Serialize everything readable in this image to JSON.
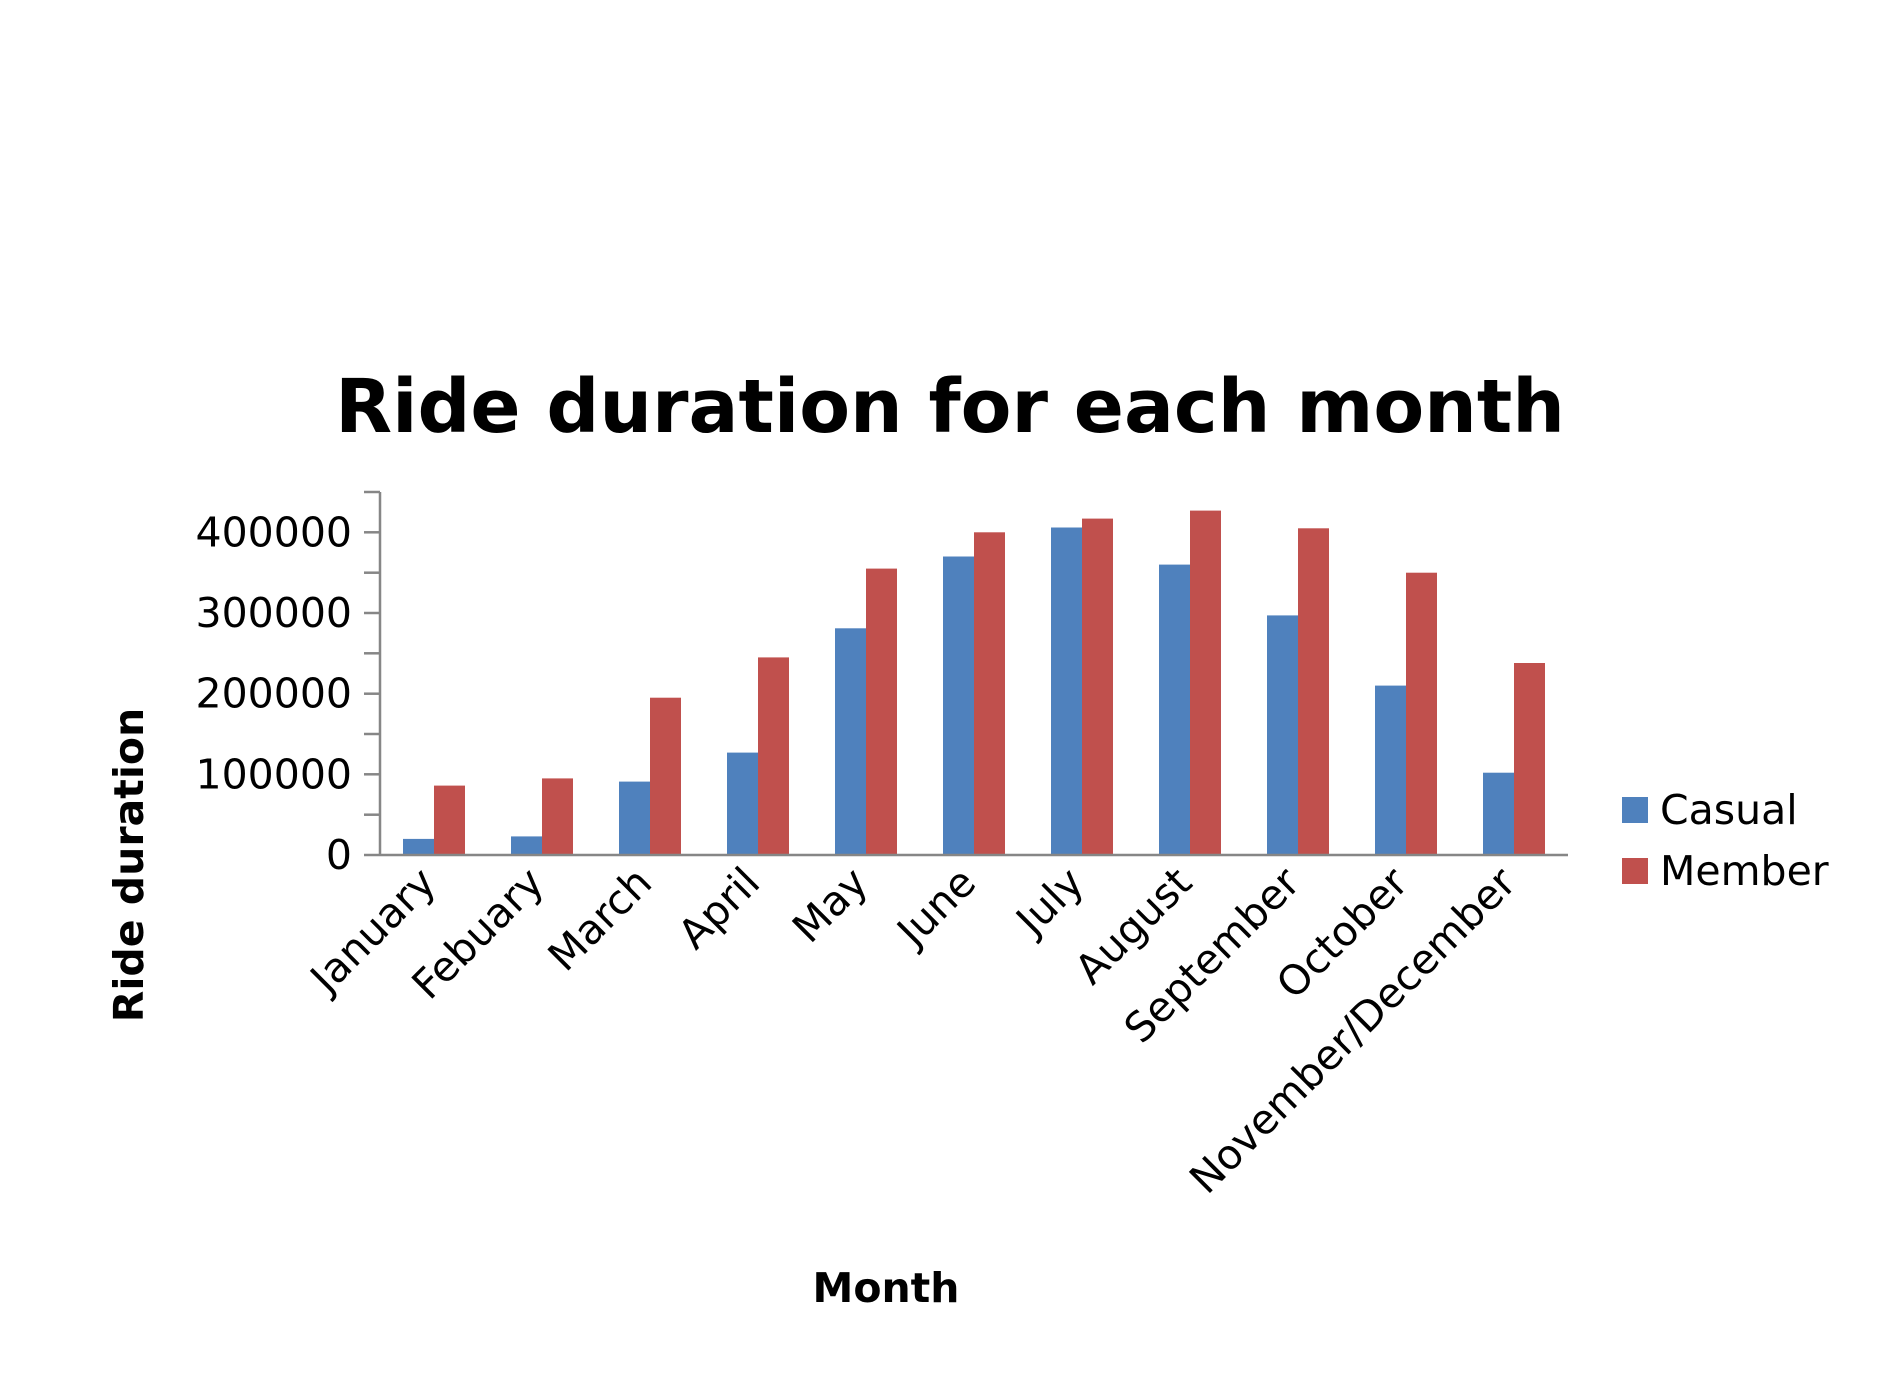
{
  "chart_data": {
    "type": "bar",
    "title": "Ride duration for each month",
    "xlabel": "Month",
    "ylabel": "Ride duration",
    "categories": [
      "January",
      "Febuary",
      "March",
      "April",
      "May",
      "June",
      "July",
      "August",
      "September",
      "October",
      "November/December"
    ],
    "series": [
      {
        "name": "Casual",
        "color": "#4F81BD",
        "values": [
          20000,
          23000,
          91000,
          127000,
          281000,
          370000,
          406000,
          360000,
          297000,
          210000,
          102000
        ]
      },
      {
        "name": "Member",
        "color": "#C0504D",
        "values": [
          86000,
          95000,
          195000,
          245000,
          355000,
          400000,
          417000,
          427000,
          405000,
          350000,
          238000
        ]
      }
    ],
    "ylim": [
      0,
      450000
    ],
    "yticks": [
      "0",
      "100000",
      "200000",
      "300000",
      "400000"
    ],
    "grid": false,
    "legend_position": "right"
  }
}
